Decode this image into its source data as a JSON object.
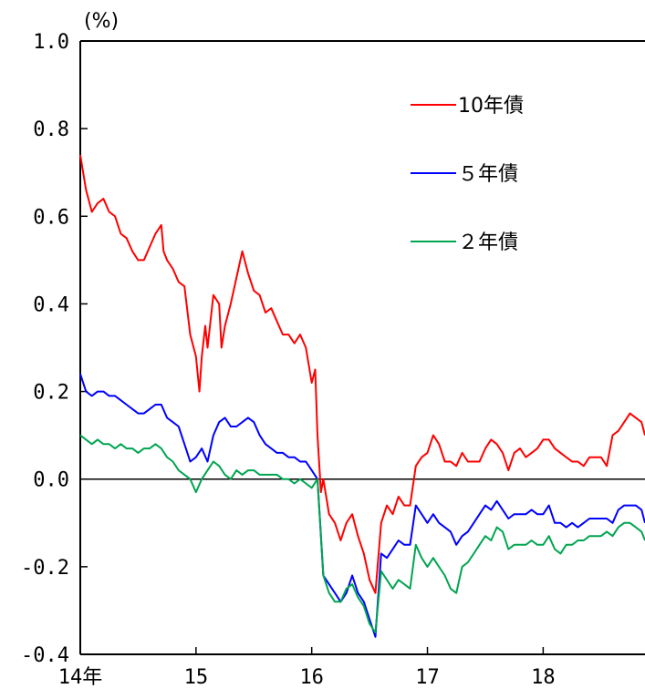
{
  "chart_data": {
    "type": "line",
    "unit_label": "(%)",
    "ylim": [
      -0.4,
      1.0
    ],
    "y_ticks": [
      1.0,
      0.8,
      0.6,
      0.4,
      0.2,
      0.0,
      -0.2,
      -0.4
    ],
    "y_tick_labels": [
      "1.0",
      "0.8",
      "0.6",
      "0.4",
      "0.2",
      "0.0",
      "-0.2",
      "-0.4"
    ],
    "xlim": [
      2014.0,
      2018.88
    ],
    "x_ticks": [
      2014,
      2015,
      2016,
      2017,
      2018
    ],
    "x_tick_labels": [
      "14年",
      "15",
      "16",
      "17",
      "18"
    ],
    "zero_line": true,
    "legend_position": "top-right",
    "series": [
      {
        "name": "10年債",
        "color": "#ff0000",
        "x": [
          2014.0,
          2014.05,
          2014.1,
          2014.15,
          2014.2,
          2014.25,
          2014.3,
          2014.35,
          2014.4,
          2014.45,
          2014.5,
          2014.55,
          2014.6,
          2014.65,
          2014.7,
          2014.72,
          2014.75,
          2014.8,
          2014.85,
          2014.9,
          2014.95,
          2015.0,
          2015.03,
          2015.05,
          2015.08,
          2015.1,
          2015.15,
          2015.2,
          2015.22,
          2015.25,
          2015.3,
          2015.35,
          2015.4,
          2015.45,
          2015.5,
          2015.55,
          2015.6,
          2015.65,
          2015.7,
          2015.75,
          2015.8,
          2015.85,
          2015.9,
          2015.95,
          2016.0,
          2016.03,
          2016.05,
          2016.08,
          2016.1,
          2016.15,
          2016.2,
          2016.25,
          2016.3,
          2016.35,
          2016.4,
          2016.45,
          2016.5,
          2016.55,
          2016.6,
          2016.65,
          2016.7,
          2016.75,
          2016.8,
          2016.85,
          2016.9,
          2016.95,
          2017.0,
          2017.05,
          2017.1,
          2017.15,
          2017.2,
          2017.25,
          2017.3,
          2017.35,
          2017.4,
          2017.45,
          2017.5,
          2017.55,
          2017.6,
          2017.65,
          2017.7,
          2017.75,
          2017.8,
          2017.85,
          2017.9,
          2017.95,
          2018.0,
          2018.05,
          2018.1,
          2018.15,
          2018.2,
          2018.25,
          2018.3,
          2018.35,
          2018.4,
          2018.45,
          2018.5,
          2018.55,
          2018.6,
          2018.65,
          2018.7,
          2018.75,
          2018.8,
          2018.85,
          2018.88
        ],
        "values": [
          0.74,
          0.66,
          0.61,
          0.63,
          0.64,
          0.61,
          0.6,
          0.56,
          0.55,
          0.52,
          0.5,
          0.5,
          0.53,
          0.56,
          0.58,
          0.52,
          0.5,
          0.48,
          0.45,
          0.44,
          0.33,
          0.28,
          0.2,
          0.28,
          0.35,
          0.3,
          0.42,
          0.4,
          0.3,
          0.35,
          0.4,
          0.46,
          0.52,
          0.47,
          0.43,
          0.42,
          0.38,
          0.39,
          0.36,
          0.33,
          0.33,
          0.31,
          0.33,
          0.3,
          0.22,
          0.25,
          0.1,
          -0.03,
          0.0,
          -0.08,
          -0.1,
          -0.14,
          -0.1,
          -0.08,
          -0.13,
          -0.17,
          -0.23,
          -0.26,
          -0.1,
          -0.06,
          -0.08,
          -0.04,
          -0.06,
          -0.06,
          0.03,
          0.05,
          0.06,
          0.1,
          0.08,
          0.04,
          0.04,
          0.03,
          0.06,
          0.04,
          0.04,
          0.04,
          0.07,
          0.09,
          0.08,
          0.06,
          0.02,
          0.06,
          0.07,
          0.05,
          0.06,
          0.07,
          0.09,
          0.09,
          0.07,
          0.06,
          0.05,
          0.04,
          0.04,
          0.03,
          0.05,
          0.05,
          0.05,
          0.03,
          0.1,
          0.11,
          0.13,
          0.15,
          0.14,
          0.13,
          0.1
        ]
      },
      {
        "name": "５年債",
        "color": "#0000ff",
        "x": [
          2014.0,
          2014.05,
          2014.1,
          2014.15,
          2014.2,
          2014.25,
          2014.3,
          2014.35,
          2014.4,
          2014.45,
          2014.5,
          2014.55,
          2014.6,
          2014.65,
          2014.7,
          2014.75,
          2014.8,
          2014.85,
          2014.9,
          2014.95,
          2015.0,
          2015.05,
          2015.1,
          2015.15,
          2015.2,
          2015.25,
          2015.3,
          2015.35,
          2015.4,
          2015.45,
          2015.5,
          2015.55,
          2015.6,
          2015.65,
          2015.7,
          2015.75,
          2015.8,
          2015.85,
          2015.9,
          2015.95,
          2016.0,
          2016.05,
          2016.1,
          2016.15,
          2016.2,
          2016.25,
          2016.3,
          2016.35,
          2016.4,
          2016.45,
          2016.5,
          2016.55,
          2016.6,
          2016.65,
          2016.7,
          2016.75,
          2016.8,
          2016.85,
          2016.9,
          2016.95,
          2017.0,
          2017.05,
          2017.1,
          2017.15,
          2017.2,
          2017.25,
          2017.3,
          2017.35,
          2017.4,
          2017.45,
          2017.5,
          2017.55,
          2017.6,
          2017.65,
          2017.7,
          2017.75,
          2017.8,
          2017.85,
          2017.9,
          2017.95,
          2018.0,
          2018.05,
          2018.1,
          2018.15,
          2018.2,
          2018.25,
          2018.3,
          2018.35,
          2018.4,
          2018.45,
          2018.5,
          2018.55,
          2018.6,
          2018.65,
          2018.7,
          2018.75,
          2018.8,
          2018.85,
          2018.88
        ],
        "values": [
          0.24,
          0.2,
          0.19,
          0.2,
          0.2,
          0.19,
          0.19,
          0.18,
          0.17,
          0.16,
          0.15,
          0.15,
          0.16,
          0.17,
          0.17,
          0.14,
          0.13,
          0.12,
          0.08,
          0.04,
          0.05,
          0.07,
          0.04,
          0.1,
          0.13,
          0.14,
          0.12,
          0.12,
          0.13,
          0.14,
          0.13,
          0.1,
          0.08,
          0.07,
          0.06,
          0.06,
          0.05,
          0.05,
          0.04,
          0.04,
          0.02,
          0.0,
          -0.22,
          -0.24,
          -0.26,
          -0.28,
          -0.26,
          -0.22,
          -0.26,
          -0.28,
          -0.32,
          -0.36,
          -0.17,
          -0.18,
          -0.16,
          -0.14,
          -0.15,
          -0.15,
          -0.06,
          -0.08,
          -0.1,
          -0.08,
          -0.1,
          -0.11,
          -0.12,
          -0.15,
          -0.13,
          -0.12,
          -0.1,
          -0.08,
          -0.06,
          -0.07,
          -0.05,
          -0.07,
          -0.09,
          -0.08,
          -0.08,
          -0.08,
          -0.07,
          -0.08,
          -0.08,
          -0.06,
          -0.1,
          -0.1,
          -0.11,
          -0.1,
          -0.11,
          -0.1,
          -0.09,
          -0.09,
          -0.09,
          -0.09,
          -0.1,
          -0.07,
          -0.06,
          -0.06,
          -0.06,
          -0.07,
          -0.1
        ]
      },
      {
        "name": "２年債",
        "color": "#00a550",
        "x": [
          2014.0,
          2014.05,
          2014.1,
          2014.15,
          2014.2,
          2014.25,
          2014.3,
          2014.35,
          2014.4,
          2014.45,
          2014.5,
          2014.55,
          2014.6,
          2014.65,
          2014.7,
          2014.75,
          2014.8,
          2014.85,
          2014.9,
          2014.95,
          2015.0,
          2015.05,
          2015.1,
          2015.15,
          2015.2,
          2015.25,
          2015.3,
          2015.35,
          2015.4,
          2015.45,
          2015.5,
          2015.55,
          2015.6,
          2015.65,
          2015.7,
          2015.75,
          2015.8,
          2015.85,
          2015.9,
          2015.95,
          2016.0,
          2016.05,
          2016.1,
          2016.15,
          2016.2,
          2016.25,
          2016.3,
          2016.35,
          2016.4,
          2016.45,
          2016.5,
          2016.55,
          2016.6,
          2016.65,
          2016.7,
          2016.75,
          2016.8,
          2016.85,
          2016.9,
          2016.95,
          2017.0,
          2017.05,
          2017.1,
          2017.15,
          2017.2,
          2017.25,
          2017.3,
          2017.35,
          2017.4,
          2017.45,
          2017.5,
          2017.55,
          2017.6,
          2017.65,
          2017.7,
          2017.75,
          2017.8,
          2017.85,
          2017.9,
          2017.95,
          2018.0,
          2018.05,
          2018.1,
          2018.15,
          2018.2,
          2018.25,
          2018.3,
          2018.35,
          2018.4,
          2018.45,
          2018.5,
          2018.55,
          2018.6,
          2018.65,
          2018.7,
          2018.75,
          2018.8,
          2018.85,
          2018.88
        ],
        "values": [
          0.1,
          0.09,
          0.08,
          0.09,
          0.08,
          0.08,
          0.07,
          0.08,
          0.07,
          0.07,
          0.06,
          0.07,
          0.07,
          0.08,
          0.07,
          0.05,
          0.04,
          0.02,
          0.01,
          0.0,
          -0.03,
          0.0,
          0.02,
          0.04,
          0.03,
          0.01,
          0.0,
          0.02,
          0.01,
          0.02,
          0.02,
          0.01,
          0.01,
          0.01,
          0.01,
          0.0,
          0.0,
          -0.01,
          0.0,
          -0.01,
          -0.02,
          0.0,
          -0.22,
          -0.26,
          -0.28,
          -0.28,
          -0.25,
          -0.24,
          -0.27,
          -0.29,
          -0.33,
          -0.35,
          -0.21,
          -0.23,
          -0.25,
          -0.23,
          -0.24,
          -0.25,
          -0.15,
          -0.18,
          -0.2,
          -0.18,
          -0.2,
          -0.22,
          -0.25,
          -0.26,
          -0.2,
          -0.19,
          -0.17,
          -0.15,
          -0.13,
          -0.14,
          -0.11,
          -0.12,
          -0.16,
          -0.15,
          -0.15,
          -0.15,
          -0.14,
          -0.15,
          -0.15,
          -0.13,
          -0.16,
          -0.17,
          -0.15,
          -0.15,
          -0.14,
          -0.14,
          -0.13,
          -0.13,
          -0.13,
          -0.12,
          -0.13,
          -0.11,
          -0.1,
          -0.1,
          -0.11,
          -0.12,
          -0.14
        ]
      }
    ]
  }
}
